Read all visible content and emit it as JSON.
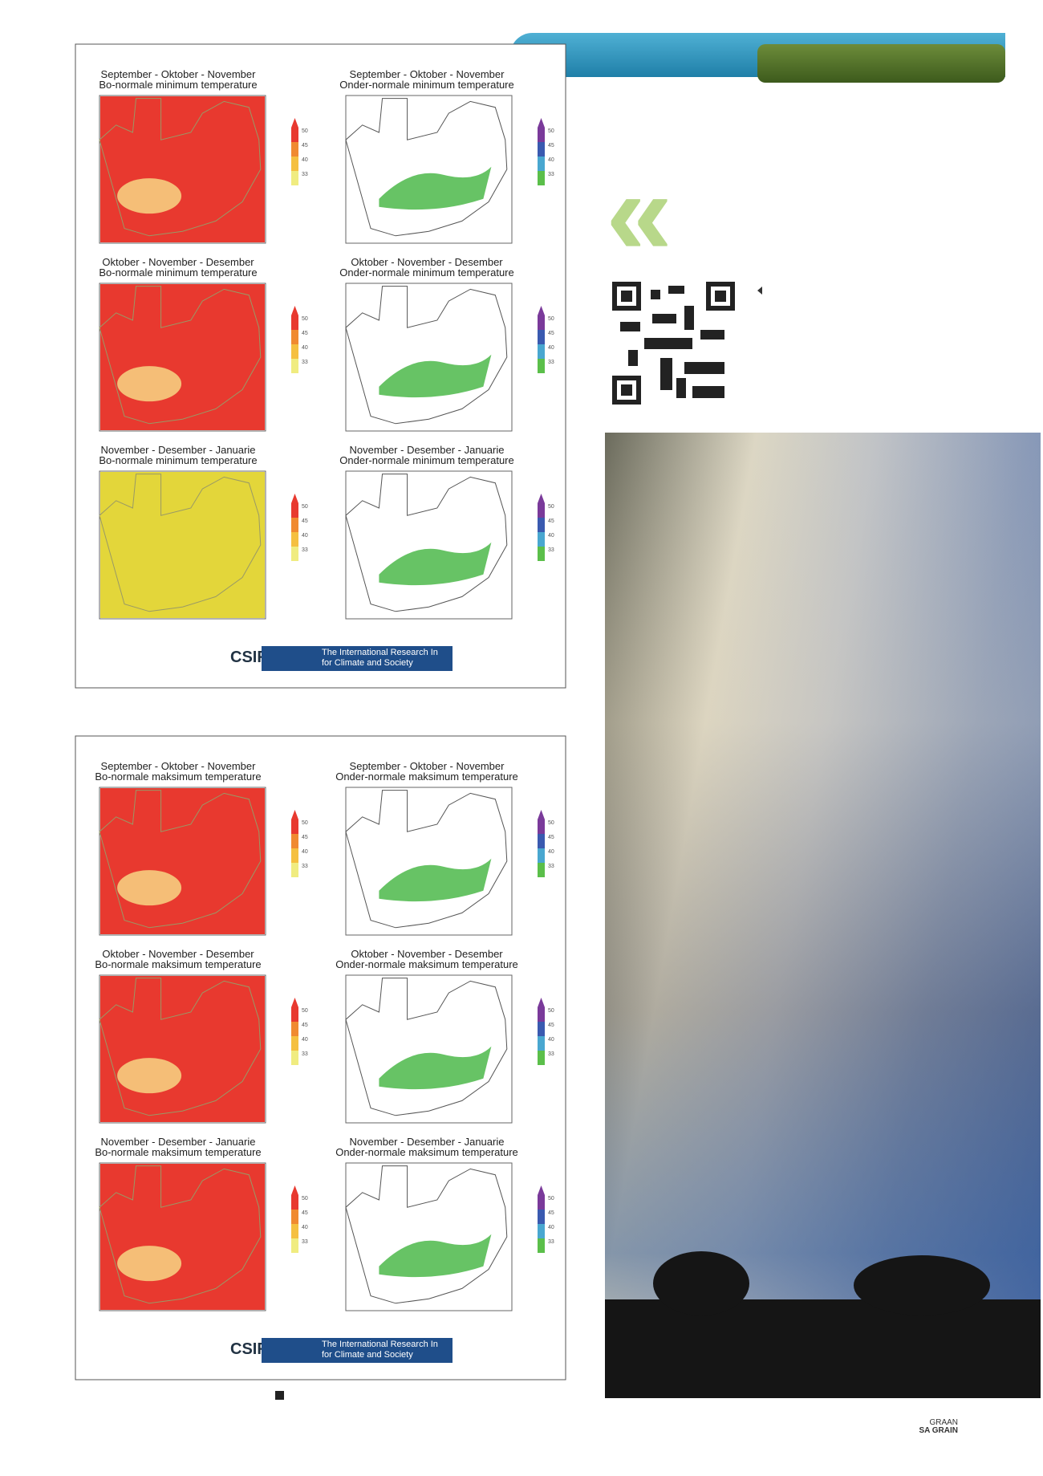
{
  "figures": [
    {
      "panels": [
        {
          "title": [
            "September - Oktober - November",
            "Bo-normale minimum temperature"
          ],
          "fill": "#e8392f"
        },
        {
          "title": [
            "September - Oktober - November",
            "Onder-normale minimum temperature"
          ],
          "fill": "#ffffff"
        },
        {
          "title": [
            "Oktober - November - Desember",
            "Bo-normale minimum temperature"
          ],
          "fill": "#e8392f"
        },
        {
          "title": [
            "Oktober - November - Desember",
            "Onder-normale minimum temperature"
          ],
          "fill": "#ffffff"
        },
        {
          "title": [
            "November - Desember - Januarie",
            "Bo-normale minimum temperature"
          ],
          "fill": "#e3d63a"
        },
        {
          "title": [
            "November - Desember - Januarie",
            "Onder-normale minimum temperature"
          ],
          "fill": "#ffffff"
        }
      ],
      "logo": {
        "csir": "CSIR",
        "iri": [
          "The International Research In",
          "for Climate and Society"
        ]
      }
    },
    {
      "panels": [
        {
          "title": [
            "September - Oktober - November",
            "Bo-normale maksimum temperature"
          ],
          "fill": "#e8392f"
        },
        {
          "title": [
            "September - Oktober - November",
            "Onder-normale maksimum temperature"
          ],
          "fill": "#ffffff"
        },
        {
          "title": [
            "Oktober - November - Desember",
            "Bo-normale maksimum temperature"
          ],
          "fill": "#e8392f"
        },
        {
          "title": [
            "Oktober - November - Desember",
            "Onder-normale maksimum temperature"
          ],
          "fill": "#ffffff"
        },
        {
          "title": [
            "November - Desember - Januarie",
            "Bo-normale maksimum temperature"
          ],
          "fill": "#e8392f"
        },
        {
          "title": [
            "November - Desember - Januarie",
            "Onder-normale maksimum temperature"
          ],
          "fill": "#ffffff"
        }
      ],
      "logo": {
        "csir": "CSIR",
        "iri": [
          "The International Research In",
          "for Climate and Society"
        ]
      }
    }
  ],
  "legend_ticks": [
    "50",
    "45",
    "40",
    "33"
  ],
  "footer": {
    "logo": [
      "GRAAN",
      "SA GRAIN"
    ]
  }
}
